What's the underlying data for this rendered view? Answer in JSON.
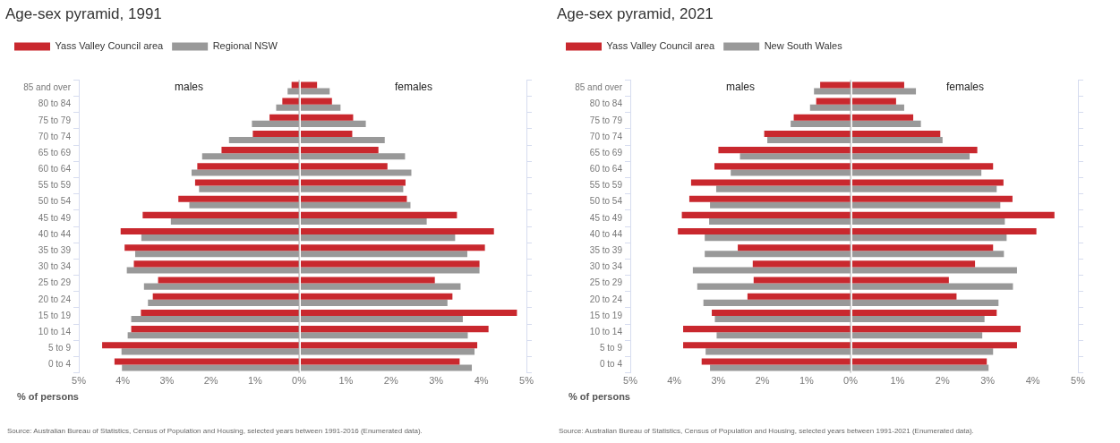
{
  "chart_data": [
    {
      "type": "bar",
      "orientation": "horizontal",
      "title": "Age-sex pyramid, 1991",
      "xlabel": "% of persons",
      "legend": "top left",
      "categories": [
        "85 and over",
        "80 to 84",
        "75 to 79",
        "70 to 74",
        "65 to 69",
        "60 to 64",
        "55 to 59",
        "50 to 54",
        "45 to 49",
        "40 to 44",
        "35 to 39",
        "30 to 34",
        "25 to 29",
        "20 to 24",
        "15 to 19",
        "10 to 14",
        "5 to 9",
        "0 to 4"
      ],
      "series": [
        {
          "name": "Yass Valley Council area",
          "color": "#c9282e",
          "values": [
            0.17,
            0.38,
            0.67,
            1.05,
            1.76,
            2.31,
            2.36,
            2.74,
            3.55,
            4.05,
            3.96,
            3.75,
            3.2,
            3.32,
            3.59,
            3.81,
            4.47,
            4.19
          ]
        },
        {
          "name": "Regional NSW",
          "color": "#999999",
          "values": [
            0.26,
            0.52,
            1.07,
            1.59,
            2.2,
            2.44,
            2.27,
            2.49,
            2.91,
            3.58,
            3.72,
            3.91,
            3.52,
            3.43,
            3.81,
            3.89,
            4.03,
            4.02
          ]
        }
      ],
      "xlim": [
        5,
        0
      ],
      "xticks": [
        {
          "value": 5,
          "label": "5%"
        },
        {
          "value": 4,
          "label": "4%"
        },
        {
          "value": 3,
          "label": "3%"
        },
        {
          "value": 2,
          "label": "2%"
        },
        {
          "value": 1,
          "label": "1%"
        },
        {
          "value": 0,
          "label": "0%"
        }
      ],
      "ref_lines": [
        {
          "axis": "x",
          "value": 0,
          "color": "#aaaaaa"
        }
      ],
      "annotations": [
        "males",
        "Source: Australian Bureau of Statistics, Census of Population and Housing, selected years between 1991-2016 (Enumerated data)."
      ]
    },
    {
      "type": "bar",
      "orientation": "horizontal",
      "tick_labels": "x",
      "categories": [
        null,
        null,
        null,
        null,
        null,
        null,
        null,
        null,
        null,
        null,
        null,
        null,
        null,
        null,
        null,
        null,
        null,
        null
      ],
      "series": [
        {
          "color": "#c9282e",
          "values": [
            0.36,
            0.69,
            1.16,
            1.14,
            1.72,
            1.92,
            2.32,
            2.35,
            3.46,
            4.28,
            4.08,
            3.96,
            2.97,
            3.36,
            4.79,
            4.16,
            3.91,
            3.52
          ]
        },
        {
          "color": "#999999",
          "values": [
            0.64,
            0.88,
            1.44,
            1.86,
            2.31,
            2.45,
            2.27,
            2.43,
            2.79,
            3.42,
            3.69,
            3.96,
            3.54,
            3.25,
            3.59,
            3.7,
            3.85,
            3.79
          ]
        }
      ],
      "xlim": [
        0,
        5
      ],
      "xticks": [
        {
          "value": 1,
          "label": "1%"
        },
        {
          "value": 2,
          "label": "2%"
        },
        {
          "value": 3,
          "label": "3%"
        },
        {
          "value": 4,
          "label": "4%"
        },
        {
          "value": 5,
          "label": "5%"
        }
      ],
      "annotations": [
        "females"
      ]
    },
    {
      "type": "bar",
      "orientation": "horizontal",
      "title": "Age-sex pyramid, 2021",
      "xlabel": "% of persons",
      "legend": "top left",
      "categories": [
        "85 and over",
        "80 to 84",
        "75 to 79",
        "70 to 74",
        "65 to 69",
        "60 to 64",
        "55 to 59",
        "50 to 54",
        "45 to 49",
        "40 to 44",
        "35 to 39",
        "30 to 34",
        "25 to 29",
        "20 to 24",
        "15 to 19",
        "10 to 14",
        "5 to 9",
        "0 to 4"
      ],
      "series": [
        {
          "name": "Yass Valley Council area",
          "color": "#c9282e",
          "values": [
            0.69,
            0.78,
            1.29,
            1.96,
            3.0,
            3.09,
            3.62,
            3.66,
            3.83,
            3.92,
            2.56,
            2.22,
            2.2,
            2.34,
            3.15,
            3.8,
            3.8,
            3.38
          ]
        },
        {
          "name": "New South Wales",
          "color": "#999999",
          "values": [
            0.83,
            0.92,
            1.36,
            1.89,
            2.51,
            2.72,
            3.05,
            3.19,
            3.21,
            3.31,
            3.31,
            3.58,
            3.48,
            3.34,
            3.08,
            3.04,
            3.29,
            3.19
          ]
        }
      ],
      "xlim": [
        5,
        0
      ],
      "xticks": [
        {
          "value": 5,
          "label": "5%"
        },
        {
          "value": 4,
          "label": "4%"
        },
        {
          "value": 3,
          "label": "3%"
        },
        {
          "value": 2,
          "label": "2%"
        },
        {
          "value": 1,
          "label": "1%"
        },
        {
          "value": 0,
          "label": "0%"
        }
      ],
      "ref_lines": [
        {
          "axis": "x",
          "value": 0,
          "color": "#aaaaaa"
        }
      ],
      "annotations": [
        "males",
        "Source: Australian Bureau of Statistics, Census of Population and Housing, selected years between 1991-2021 (Enumerated data)."
      ]
    },
    {
      "type": "bar",
      "orientation": "horizontal",
      "tick_labels": "x",
      "categories": [
        null,
        null,
        null,
        null,
        null,
        null,
        null,
        null,
        null,
        null,
        null,
        null,
        null,
        null,
        null,
        null,
        null,
        null
      ],
      "series": [
        {
          "color": "#c9282e",
          "values": [
            1.15,
            0.97,
            1.35,
            1.95,
            2.77,
            3.12,
            3.35,
            3.55,
            4.48,
            4.08,
            3.12,
            2.72,
            2.14,
            2.31,
            3.2,
            3.73,
            3.65,
            2.98
          ]
        },
        {
          "color": "#999999",
          "values": [
            1.41,
            1.15,
            1.52,
            2.0,
            2.6,
            2.86,
            3.2,
            3.28,
            3.38,
            3.42,
            3.36,
            3.65,
            3.56,
            3.24,
            2.93,
            2.88,
            3.12,
            3.02
          ]
        }
      ],
      "xlim": [
        0,
        5
      ],
      "xticks": [
        {
          "value": 1,
          "label": "1%"
        },
        {
          "value": 2,
          "label": "2%"
        },
        {
          "value": 3,
          "label": "3%"
        },
        {
          "value": 4,
          "label": "4%"
        },
        {
          "value": 5,
          "label": "5%"
        }
      ],
      "annotations": [
        "females"
      ]
    }
  ]
}
